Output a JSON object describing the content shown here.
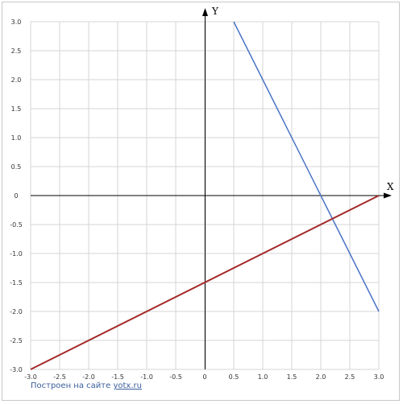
{
  "footer": {
    "prefix": "Построен на сайте",
    "link": "yotx.ru"
  },
  "chart_data": {
    "type": "line",
    "title": "",
    "xlabel": "X",
    "ylabel": "Y",
    "xlim": [
      -3.0,
      3.0
    ],
    "ylim": [
      -3.0,
      3.0
    ],
    "grid": true,
    "x_ticks": [
      "-3.0",
      "-2.5",
      "-2.0",
      "-1.5",
      "-1.0",
      "-0.5",
      "0",
      "0.5",
      "1.0",
      "1.5",
      "2.0",
      "2.5",
      "3.0"
    ],
    "y_ticks": [
      "3.0",
      "2.5",
      "2.0",
      "1.5",
      "1.0",
      "0.5",
      "0",
      "-0.5",
      "-1.0",
      "-1.5",
      "-2.0",
      "-2.5",
      "-3.0"
    ],
    "series": [
      {
        "color": "#4a72c4",
        "x": [
          0.5,
          3.0
        ],
        "y": [
          3.0,
          -2.0
        ]
      },
      {
        "color": "#a52a2a",
        "x": [
          -3.0,
          3.0
        ],
        "y": [
          -3.0,
          0.0
        ]
      }
    ]
  }
}
